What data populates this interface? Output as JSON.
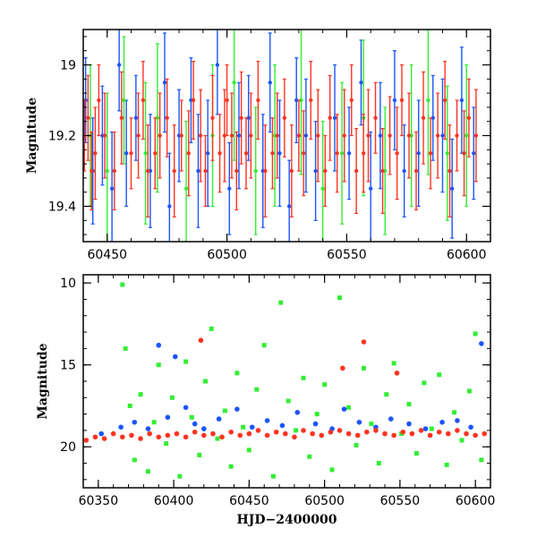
{
  "chart_data": [
    {
      "type": "scatter",
      "panel": "top",
      "xlabel": "",
      "ylabel": "Magnitude",
      "xlim": [
        60440,
        60610
      ],
      "ylim": [
        18.9,
        19.5
      ],
      "y_inverted": true,
      "x_ticks": [
        60450,
        60500,
        60550,
        60600
      ],
      "x_tick_labels": [
        "60450",
        "60500",
        "60550",
        "60600"
      ],
      "y_ticks": [
        19.0,
        19.2,
        19.4
      ],
      "y_tick_labels": [
        "19",
        "19.2",
        "19.4"
      ],
      "grid": false,
      "legend": "none",
      "series": [
        {
          "color": "#1a55ff",
          "x": [
            60441,
            60444,
            60448,
            60452,
            60455,
            60458,
            60462,
            60468,
            60474,
            60476,
            60480,
            60485,
            60488,
            60492,
            60496,
            60501,
            60505,
            60509,
            60515,
            60518,
            60522,
            60526,
            60529,
            60533,
            60537,
            60545,
            60551,
            60556,
            60560,
            60564,
            60570,
            60574,
            60580,
            60586,
            60590,
            60594,
            60598,
            60603
          ],
          "y": [
            19.1,
            19.3,
            19.2,
            19.35,
            19.0,
            19.25,
            19.15,
            19.3,
            19.05,
            19.4,
            19.2,
            19.1,
            19.3,
            19.25,
            19.0,
            19.35,
            19.2,
            19.15,
            19.3,
            19.05,
            19.25,
            19.4,
            19.1,
            19.2,
            19.3,
            19.15,
            19.25,
            19.05,
            19.35,
            19.2,
            19.1,
            19.3,
            19.25,
            19.15,
            19.2,
            19.35,
            19.1,
            19.25
          ],
          "yerr": [
            0.12,
            0.15,
            0.14,
            0.16,
            0.13,
            0.15,
            0.12,
            0.16,
            0.14,
            0.15,
            0.13,
            0.12,
            0.16,
            0.15,
            0.14,
            0.13,
            0.15,
            0.12,
            0.16,
            0.14,
            0.15,
            0.13,
            0.12,
            0.16,
            0.14,
            0.15,
            0.13,
            0.12,
            0.16,
            0.15,
            0.14,
            0.13,
            0.15,
            0.12,
            0.16,
            0.14,
            0.15,
            0.13
          ]
        },
        {
          "color": "#33ee33",
          "x": [
            60443,
            60450,
            60457,
            60466,
            60471,
            60483,
            60494,
            60503,
            60512,
            60520,
            60531,
            60540,
            60548,
            60557,
            60566,
            60577,
            60584,
            60592,
            60600
          ],
          "y": [
            19.2,
            19.3,
            19.1,
            19.25,
            19.15,
            19.35,
            19.2,
            19.05,
            19.3,
            19.2,
            19.1,
            19.35,
            19.25,
            19.15,
            19.3,
            19.2,
            19.1,
            19.25,
            19.2
          ],
          "yerr": [
            0.2,
            0.22,
            0.18,
            0.2,
            0.21,
            0.19,
            0.2,
            0.22,
            0.18,
            0.2,
            0.21,
            0.19,
            0.2,
            0.22,
            0.18,
            0.2,
            0.21,
            0.19,
            0.2
          ]
        },
        {
          "color": "#ff3322",
          "x": [
            60440.5,
            60442,
            60443.5,
            60445,
            60446.5,
            60449,
            60453,
            60456,
            60460,
            60463,
            60465,
            60467,
            60470,
            60472,
            60475,
            60478,
            60481,
            60484,
            60486,
            60489,
            60491,
            60494,
            60497,
            60499,
            60500,
            60502,
            60504,
            60506,
            60508,
            60510,
            60513,
            60516,
            60519,
            60521,
            60524,
            60527,
            60530,
            60532,
            60535,
            60538,
            60541,
            60543,
            60546,
            60549,
            60552,
            60554,
            60557,
            60559,
            60562,
            60565,
            60568,
            60571,
            60573,
            60576,
            60579,
            60582,
            60585,
            60588,
            60591,
            60593,
            60596,
            60599,
            60601,
            60604
          ],
          "y": [
            19.2,
            19.15,
            19.3,
            19.25,
            19.1,
            19.2,
            19.3,
            19.15,
            19.25,
            19.2,
            19.1,
            19.3,
            19.25,
            19.2,
            19.15,
            19.3,
            19.2,
            19.25,
            19.1,
            19.2,
            19.3,
            19.15,
            19.25,
            19.2,
            19.1,
            19.2,
            19.3,
            19.15,
            19.25,
            19.2,
            19.1,
            19.3,
            19.25,
            19.2,
            19.15,
            19.3,
            19.2,
            19.25,
            19.1,
            19.2,
            19.3,
            19.15,
            19.25,
            19.2,
            19.1,
            19.3,
            19.25,
            19.2,
            19.15,
            19.3,
            19.2,
            19.25,
            19.1,
            19.2,
            19.3,
            19.15,
            19.25,
            19.2,
            19.1,
            19.3,
            19.2,
            19.25,
            19.15,
            19.2
          ],
          "yerr": [
            0.1,
            0.12,
            0.11,
            0.13,
            0.1,
            0.12,
            0.11,
            0.13,
            0.1,
            0.12,
            0.11,
            0.13,
            0.1,
            0.12,
            0.11,
            0.13,
            0.1,
            0.12,
            0.11,
            0.13,
            0.1,
            0.12,
            0.11,
            0.13,
            0.1,
            0.12,
            0.11,
            0.13,
            0.1,
            0.12,
            0.11,
            0.13,
            0.1,
            0.12,
            0.11,
            0.13,
            0.1,
            0.12,
            0.11,
            0.13,
            0.1,
            0.12,
            0.11,
            0.13,
            0.1,
            0.12,
            0.11,
            0.13,
            0.1,
            0.12,
            0.11,
            0.13,
            0.1,
            0.12,
            0.11,
            0.13,
            0.1,
            0.12,
            0.11,
            0.13,
            0.1,
            0.12,
            0.11,
            0.13
          ]
        }
      ]
    },
    {
      "type": "scatter",
      "panel": "bottom",
      "xlabel": "HJD−2400000",
      "ylabel": "Magnitude",
      "xlim": [
        60340,
        60610
      ],
      "ylim": [
        9.5,
        22.5
      ],
      "y_inverted": true,
      "x_ticks": [
        60350,
        60400,
        60450,
        60500,
        60550,
        60600
      ],
      "x_tick_labels": [
        "60350",
        "60400",
        "60450",
        "60500",
        "60550",
        "60600"
      ],
      "y_ticks": [
        10,
        15,
        20
      ],
      "y_tick_labels": [
        "10",
        "15",
        "20"
      ],
      "grid": false,
      "legend": "none",
      "series": [
        {
          "color": "#33ee33",
          "x": [
            60366,
            60368,
            60371,
            60374,
            60378,
            60383,
            60387,
            60390,
            60395,
            60399,
            60404,
            60408,
            60412,
            60417,
            60421,
            60425,
            60429,
            60434,
            60438,
            60442,
            60446,
            60450,
            60455,
            60460,
            60466,
            60471,
            60476,
            60481,
            60486,
            60490,
            60495,
            60500,
            60505,
            60510,
            60516,
            60521,
            60526,
            60531,
            60536,
            60541,
            60546,
            60551,
            60556,
            60561,
            60566,
            60571,
            60576,
            60581,
            60586,
            60591,
            60596,
            60600,
            60604
          ],
          "y": [
            10.1,
            14.0,
            17.5,
            20.8,
            16.8,
            21.5,
            18.5,
            15.0,
            19.8,
            17.0,
            21.8,
            14.8,
            18.2,
            20.5,
            16.0,
            12.8,
            19.5,
            17.8,
            21.2,
            15.5,
            18.8,
            20.2,
            16.5,
            13.8,
            21.8,
            11.2,
            17.2,
            19.0,
            15.8,
            20.6,
            18.0,
            16.2,
            21.4,
            10.9,
            17.6,
            19.9,
            15.2,
            18.6,
            21.0,
            16.8,
            14.9,
            19.2,
            17.4,
            20.4,
            16.1,
            18.9,
            15.6,
            21.1,
            17.9,
            19.6,
            16.6,
            13.1,
            20.8
          ]
        },
        {
          "color": "#1a55ff",
          "x": [
            60352,
            60365,
            60374,
            60383,
            60390,
            60396,
            60401,
            60408,
            60414,
            60420,
            60430,
            60442,
            60452,
            60462,
            60472,
            60482,
            60494,
            60505,
            60513,
            60523,
            60534,
            60544,
            60556,
            60567,
            60578,
            60588,
            60597,
            60604
          ],
          "y": [
            19.2,
            18.8,
            18.5,
            18.9,
            13.8,
            18.2,
            14.5,
            17.6,
            18.6,
            18.9,
            18.3,
            17.7,
            18.8,
            18.4,
            18.7,
            17.9,
            18.6,
            18.9,
            17.7,
            18.5,
            18.8,
            18.3,
            18.6,
            18.9,
            18.5,
            18.4,
            18.8,
            13.7
          ]
        },
        {
          "color": "#ff3322",
          "x": [
            60342,
            60348,
            60354,
            60360,
            60366,
            60372,
            60378,
            60384,
            60390,
            60396,
            60402,
            60408,
            60414,
            60418,
            60420,
            60426,
            60432,
            60438,
            60444,
            60450,
            60456,
            60462,
            60468,
            60474,
            60480,
            60486,
            60492,
            60498,
            60504,
            60510,
            60512,
            60516,
            60522,
            60526,
            60528,
            60534,
            60540,
            60546,
            60548,
            60552,
            60558,
            60564,
            60570,
            60576,
            60582,
            60588,
            60594,
            60600,
            60606
          ],
          "y": [
            19.6,
            19.4,
            19.5,
            19.2,
            19.4,
            19.3,
            19.5,
            19.2,
            19.4,
            19.3,
            19.2,
            19.4,
            19.1,
            13.5,
            19.3,
            19.2,
            19.4,
            19.1,
            19.3,
            19.2,
            19.0,
            19.3,
            19.1,
            19.2,
            19.4,
            19.0,
            19.2,
            19.3,
            19.1,
            19.0,
            15.2,
            19.2,
            19.3,
            13.6,
            19.1,
            19.0,
            19.2,
            19.3,
            15.5,
            19.1,
            19.2,
            19.0,
            19.3,
            19.1,
            19.2,
            19.0,
            19.2,
            19.3,
            19.2
          ]
        }
      ]
    }
  ]
}
